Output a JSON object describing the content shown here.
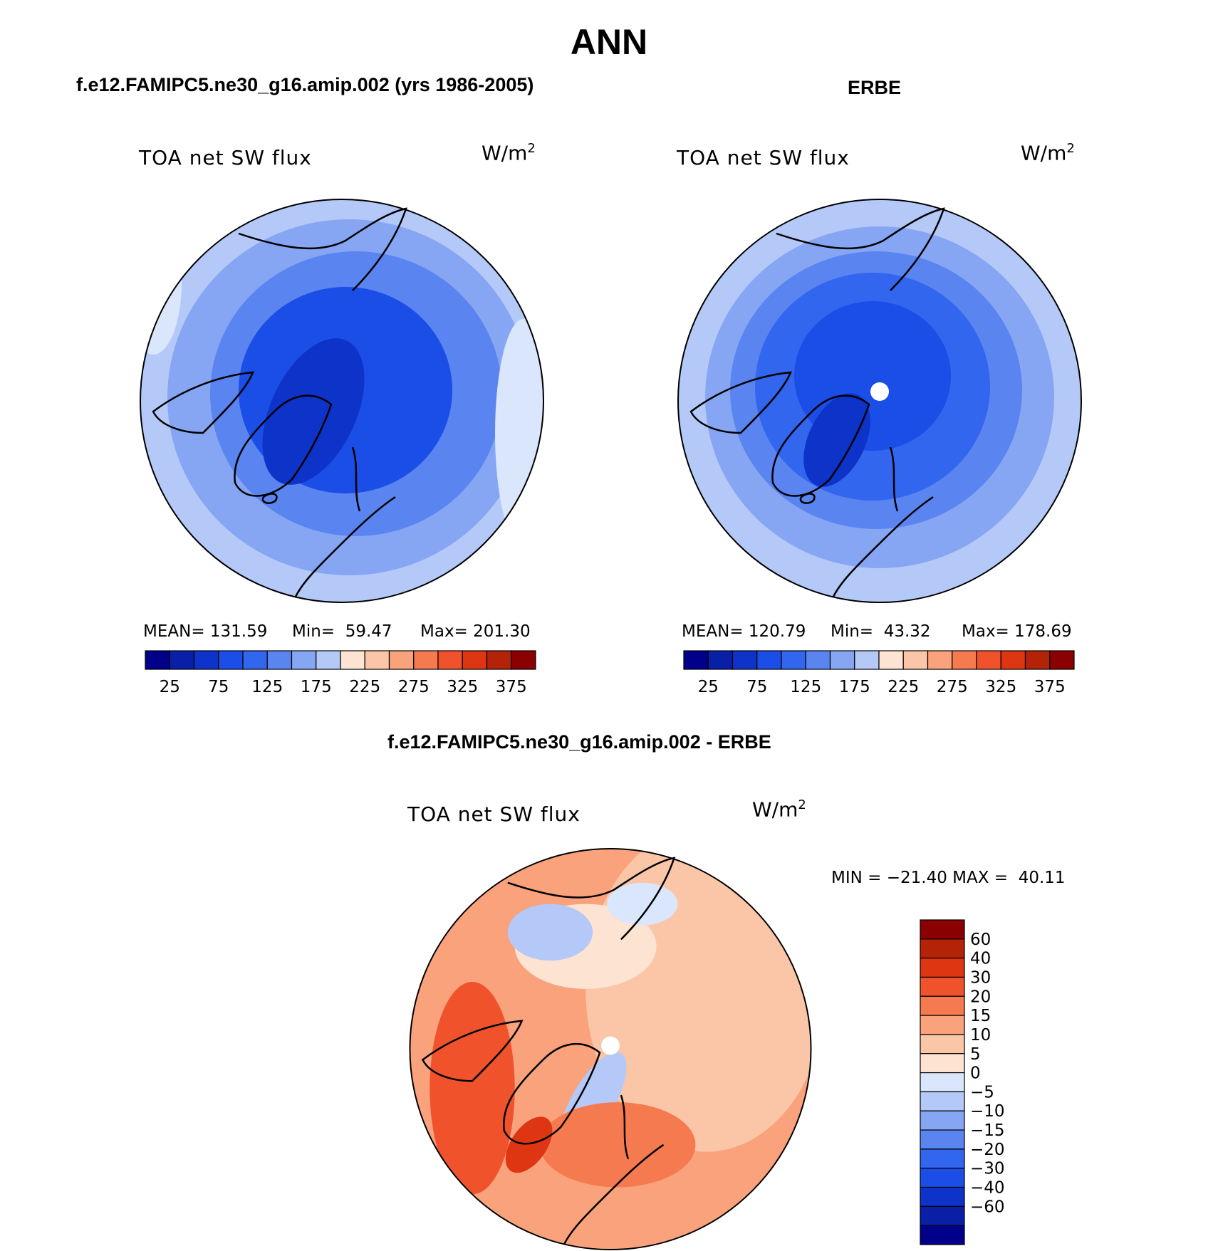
{
  "page": {
    "title": "ANN",
    "left_header": "f.e12.FAMIPC5.ne30_g16.amip.002 (yrs 1986-2005)",
    "right_header": "ERBE",
    "diff_header": "f.e12.FAMIPC5.ne30_g16.amip.002 - ERBE"
  },
  "colors": {
    "blues": [
      "#00008b",
      "#0a1fa8",
      "#0e33c8",
      "#1a4ee6",
      "#3366ee",
      "#5a84f0",
      "#86a6f4",
      "#b4c9f8",
      "#d9e6fc"
    ],
    "reds": [
      "#fde3d2",
      "#fbc6a8",
      "#f9a27c",
      "#f67a50",
      "#f0532c",
      "#de3512",
      "#b42208",
      "#8b0000"
    ],
    "ocean_mid": "#4c78ee",
    "pole_white": "#ffffff"
  },
  "chart_data": [
    {
      "type": "heatmap",
      "projection": "north polar stereographic",
      "panel": "model",
      "title": "TOA net SW flux",
      "units": "W/m2",
      "stats": {
        "mean": "MEAN= 131.59",
        "min": "Min=  59.47",
        "max": "Max= 201.30"
      },
      "colorbar": {
        "levels": [
          25,
          75,
          125,
          175,
          225,
          275,
          325,
          375
        ],
        "orientation": "horizontal"
      }
    },
    {
      "type": "heatmap",
      "projection": "north polar stereographic",
      "panel": "obs",
      "title": "TOA net SW flux",
      "units": "W/m2",
      "stats": {
        "mean": "MEAN= 120.79",
        "min": "Min=  43.32",
        "max": "Max= 178.69"
      },
      "colorbar": {
        "levels": [
          25,
          75,
          125,
          175,
          225,
          275,
          325,
          375
        ],
        "orientation": "horizontal"
      }
    },
    {
      "type": "heatmap",
      "projection": "north polar stereographic",
      "panel": "difference",
      "title": "TOA net SW flux",
      "units": "W/m2",
      "stats": {
        "minmax": "MIN = −21.40 MAX =  40.11"
      },
      "colorbar": {
        "levels": [
          "60",
          "40",
          "30",
          "20",
          "15",
          "10",
          "5",
          "0",
          "−5",
          "−10",
          "−15",
          "−20",
          "−30",
          "−40",
          "−60"
        ],
        "orientation": "vertical"
      }
    }
  ]
}
